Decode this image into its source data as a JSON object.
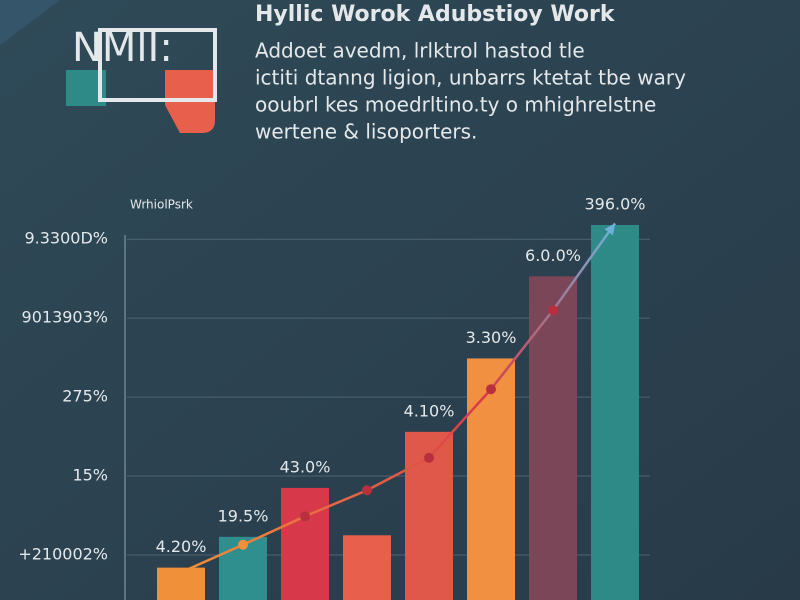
{
  "logo": "NMlI:",
  "chart_data": {
    "type": "bar",
    "title": "Hyllic Worok Adubstioy Work",
    "subtitle": [
      "Addoet avedm, lrlktrol hastod tle",
      "ictiti dtanng ligion, unbarrs ktetat tbe wary",
      "ooubrl kes moedrltino.ty o mhighrelstne",
      "wertene & lisoporters."
    ],
    "ylabel": "WrhiolPsrk",
    "categories": [
      null,
      null,
      null,
      null,
      null,
      null,
      null,
      null
    ],
    "values": [
      -0.16,
      0.23,
      0.85,
      0.25,
      1.56,
      2.49,
      3.53,
      4.18
    ],
    "value_labels": [
      "4.20%",
      "19.5%",
      "43.0%",
      null,
      "4.10%",
      "3.30%",
      "6.0.0%",
      "396.0%"
    ],
    "colors": [
      "#f0913a",
      "#2f8f8f",
      "#d8394a",
      "#e8604c",
      "#e0584a",
      "#f09040",
      "#7a4658",
      "#2e8a87"
    ],
    "series": [
      {
        "type": "line",
        "color": "#e8703c",
        "values": [
          -0.22,
          0.13,
          0.49,
          0.82,
          1.23,
          2.1,
          3.1,
          4.2
        ]
      }
    ],
    "ylim": [
      -0.57,
      4.75
    ],
    "yticks": [
      {
        "value": 0,
        "label": "+210002%"
      },
      {
        "value": 1,
        "label": "15%"
      },
      {
        "value": 2,
        "label": "275%"
      },
      {
        "value": 3,
        "label": "9013903%"
      },
      {
        "value": 4,
        "label": "9.3300D%"
      }
    ],
    "grid": true
  }
}
